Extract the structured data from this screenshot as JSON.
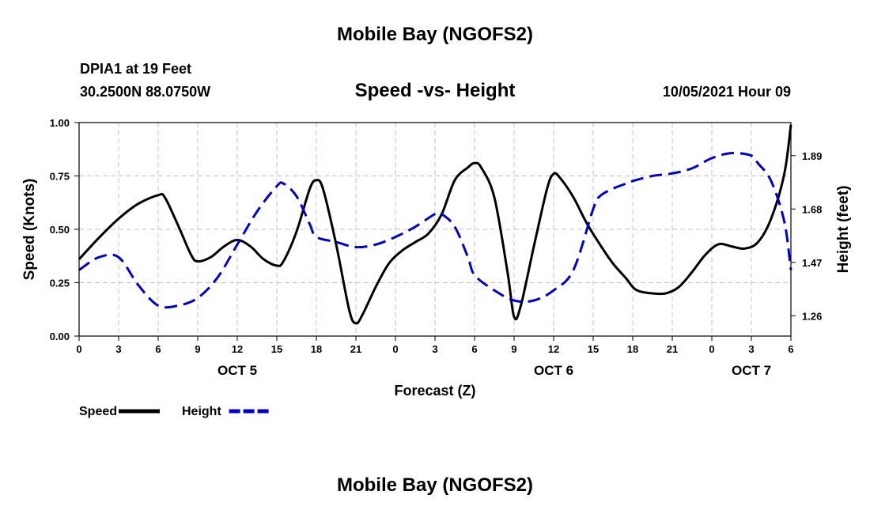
{
  "page": {
    "title_top": "Mobile Bay (NGOFS2)",
    "title_bottom": "Mobile Bay (NGOFS2)",
    "station_name": "DPIA1 at 19 Feet",
    "station_coords": "30.2500N  88.0750W",
    "timestamp": "10/05/2021 Hour 09"
  },
  "chart_data": {
    "type": "line",
    "title": "Speed -vs- Height",
    "xlabel": "Forecast (Z)",
    "ylabel": "Speed (Knots)",
    "y2label": "Height (feet)",
    "x_unit": "hours",
    "x_range": [
      0,
      54
    ],
    "x_ticks": [
      0,
      3,
      6,
      9,
      12,
      15,
      18,
      21,
      24,
      27,
      30,
      33,
      36,
      39,
      42,
      45,
      48,
      51,
      54
    ],
    "x_tick_labels": [
      "0",
      "3",
      "6",
      "9",
      "12",
      "15",
      "18",
      "21",
      "0",
      "3",
      "6",
      "9",
      "12",
      "15",
      "18",
      "21",
      "0",
      "3",
      "6"
    ],
    "date_labels": [
      {
        "x": 12,
        "label": "OCT 5"
      },
      {
        "x": 36,
        "label": "OCT 6"
      },
      {
        "x": 51,
        "label": "OCT 7"
      }
    ],
    "ylim": [
      0,
      1
    ],
    "y_ticks": [
      0,
      0.25,
      0.5,
      0.75,
      1
    ],
    "y_tick_labels": [
      "0.00",
      "0.25",
      "0.50",
      "0.75",
      "1.00"
    ],
    "y2lim": [
      1.18,
      2.02
    ],
    "y2_ticks": [
      1.26,
      1.47,
      1.68,
      1.89
    ],
    "y2_tick_labels": [
      "1.26",
      "1.47",
      "1.68",
      "1.89"
    ],
    "grid": true,
    "legend_position": "bottom-left",
    "series": [
      {
        "name": "Speed",
        "axis": "left",
        "color": "#000000",
        "dash": false,
        "x": [
          0,
          1.5,
          3,
          4.5,
          6,
          6.5,
          7.5,
          8.5,
          9,
          10,
          11,
          12,
          13,
          14,
          15,
          15.5,
          16.5,
          17.5,
          18,
          18.5,
          19.5,
          20.5,
          21,
          21.5,
          22.5,
          23.5,
          24.5,
          25.5,
          26.5,
          27.5,
          28.5,
          29.5,
          30,
          30.5,
          31.5,
          32.5,
          33,
          33.5,
          34.5,
          35.5,
          36,
          36.5,
          37.5,
          38.5,
          39.5,
          40.5,
          41.5,
          42,
          42.5,
          43.5,
          44.5,
          45.5,
          46.5,
          47.5,
          48.5,
          49.5,
          50.5,
          51.5,
          52.5,
          53.5,
          54
        ],
        "values": [
          0.36,
          0.46,
          0.55,
          0.62,
          0.66,
          0.65,
          0.52,
          0.38,
          0.35,
          0.37,
          0.42,
          0.45,
          0.42,
          0.36,
          0.33,
          0.35,
          0.49,
          0.69,
          0.73,
          0.69,
          0.43,
          0.12,
          0.06,
          0.1,
          0.23,
          0.34,
          0.4,
          0.44,
          0.48,
          0.57,
          0.73,
          0.79,
          0.81,
          0.79,
          0.65,
          0.3,
          0.09,
          0.14,
          0.42,
          0.69,
          0.76,
          0.74,
          0.65,
          0.53,
          0.43,
          0.34,
          0.27,
          0.23,
          0.21,
          0.2,
          0.2,
          0.23,
          0.3,
          0.38,
          0.43,
          0.42,
          0.41,
          0.44,
          0.55,
          0.76,
          0.99
        ]
      },
      {
        "name": "Height",
        "axis": "right",
        "color": "#0000cc",
        "dash": true,
        "x": [
          0,
          1.5,
          3,
          4.5,
          6,
          7.5,
          9,
          10.5,
          12,
          13.5,
          15,
          15.5,
          16.5,
          17.5,
          18,
          19.5,
          21,
          22.5,
          24,
          25.5,
          27,
          27.5,
          28.5,
          29.5,
          30,
          31.5,
          33,
          34.5,
          36,
          37.5,
          39,
          39.5,
          40.5,
          41.5,
          42,
          43.5,
          45,
          46.5,
          48,
          49.5,
          51,
          51.5,
          52.5,
          53.5,
          54
        ],
        "values": [
          1.44,
          1.49,
          1.49,
          1.38,
          1.3,
          1.3,
          1.33,
          1.41,
          1.54,
          1.67,
          1.77,
          1.78,
          1.73,
          1.62,
          1.57,
          1.55,
          1.53,
          1.54,
          1.57,
          1.61,
          1.66,
          1.66,
          1.61,
          1.49,
          1.42,
          1.36,
          1.32,
          1.32,
          1.36,
          1.44,
          1.68,
          1.73,
          1.76,
          1.78,
          1.79,
          1.81,
          1.82,
          1.84,
          1.88,
          1.9,
          1.89,
          1.86,
          1.79,
          1.63,
          1.44
        ]
      }
    ]
  }
}
